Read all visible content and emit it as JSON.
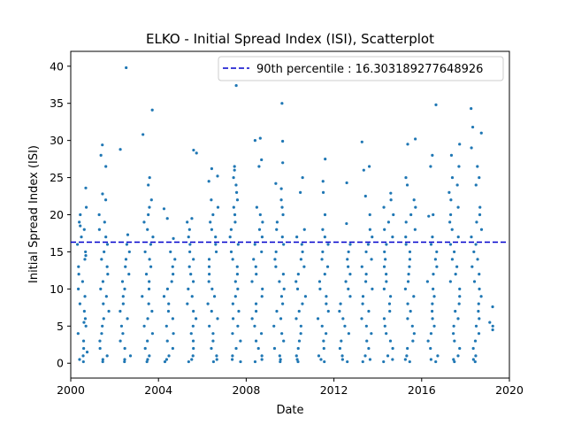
{
  "chart_data": {
    "type": "scatter",
    "title": "ELKO - Initial Spread Index (ISI), Scatterplot",
    "xlabel": "Date",
    "ylabel": "Initial Spread Index (ISI)",
    "xlim": [
      2000,
      2020
    ],
    "ylim": [
      -2,
      42
    ],
    "xticks": [
      2000,
      2004,
      2008,
      2012,
      2016,
      2020
    ],
    "yticks": [
      0,
      5,
      10,
      15,
      20,
      25,
      30,
      35,
      40
    ],
    "grid": false,
    "legend": {
      "placement": "top-right",
      "entries": [
        {
          "label": "90th percentile : 16.303189277648926",
          "style": "dashed",
          "color": "#0000cc"
        }
      ]
    },
    "reference_line": {
      "y": 16.303189277648926,
      "x_range": [
        2000,
        2019.9
      ],
      "color": "#0000cc"
    },
    "series_color": "#1f77b4",
    "seasons": [
      {
        "x": 2000.5,
        "y": [
          0.2,
          0.5,
          1.0,
          1.5,
          2.0,
          3.0,
          4.0,
          5.0,
          5.5,
          6.0,
          7.0,
          8.0,
          9.0,
          10.0,
          11.0,
          12.0,
          13.0,
          14.0,
          14.5,
          15.0,
          16.0,
          17.0,
          18.0,
          18.5,
          19.0,
          20.0,
          21.0,
          23.6
        ]
      },
      {
        "x": 2001.5,
        "y": [
          0.2,
          0.5,
          1.0,
          2.0,
          3.0,
          4.0,
          5.0,
          6.0,
          7.0,
          8.0,
          9.0,
          10.0,
          11.0,
          12.0,
          13.0,
          14.0,
          15.0,
          16.0,
          17.0,
          18.0,
          19.0,
          20.0,
          22.0,
          22.8,
          26.5,
          28.0,
          29.4
        ]
      },
      {
        "x": 2002.5,
        "y": [
          0.2,
          0.5,
          1.0,
          2.0,
          3.0,
          4.0,
          5.0,
          6.0,
          7.0,
          8.0,
          9.0,
          10.0,
          11.0,
          12.0,
          13.0,
          14.0,
          15.0,
          16.0,
          17.3,
          28.8,
          39.8
        ]
      },
      {
        "x": 2003.5,
        "y": [
          0.2,
          0.5,
          1.0,
          2.0,
          3.0,
          4.0,
          5.0,
          6.0,
          7.0,
          8.0,
          9.0,
          10.0,
          11.0,
          12.0,
          13.0,
          14.0,
          15.0,
          16.0,
          17.0,
          18.0,
          19.0,
          20.0,
          21.0,
          22.0,
          24.0,
          25.0,
          30.8,
          34.1
        ]
      },
      {
        "x": 2004.5,
        "y": [
          0.2,
          0.5,
          1.0,
          2.0,
          3.0,
          4.0,
          5.0,
          6.0,
          7.0,
          8.0,
          9.0,
          10.0,
          11.0,
          12.0,
          13.0,
          14.0,
          15.0,
          16.8,
          19.5,
          20.8
        ]
      },
      {
        "x": 2005.5,
        "y": [
          0.2,
          0.5,
          1.0,
          2.0,
          3.0,
          4.0,
          5.0,
          6.0,
          7.0,
          8.0,
          9.0,
          10.0,
          11.0,
          12.0,
          13.0,
          14.0,
          15.0,
          16.0,
          17.0,
          18.0,
          19.0,
          19.5,
          28.3,
          28.7
        ]
      },
      {
        "x": 2006.5,
        "y": [
          0.2,
          0.5,
          1.0,
          2.0,
          3.0,
          4.0,
          5.0,
          6.0,
          7.0,
          8.0,
          9.0,
          10.0,
          11.0,
          12.0,
          13.0,
          14.0,
          15.0,
          16.0,
          17.0,
          18.0,
          19.0,
          20.0,
          21.0,
          22.0,
          24.5,
          25.2,
          26.2
        ]
      },
      {
        "x": 2007.5,
        "y": [
          0.2,
          0.5,
          1.0,
          2.0,
          3.0,
          4.0,
          5.0,
          6.0,
          7.0,
          8.0,
          9.0,
          10.0,
          11.0,
          12.0,
          13.0,
          14.0,
          15.0,
          16.0,
          17.0,
          18.0,
          19.0,
          20.0,
          21.0,
          22.0,
          23.0,
          24.0,
          25.0,
          26.0,
          26.5,
          37.4
        ]
      },
      {
        "x": 2008.5,
        "y": [
          0.2,
          0.5,
          1.0,
          2.0,
          3.0,
          4.0,
          5.0,
          6.0,
          7.0,
          8.0,
          9.0,
          10.0,
          11.0,
          12.0,
          13.0,
          14.0,
          15.0,
          16.0,
          17.0,
          18.0,
          19.0,
          20.0,
          21.0,
          26.5,
          27.4,
          30.0,
          30.3
        ]
      },
      {
        "x": 2009.5,
        "y": [
          0.2,
          0.5,
          1.0,
          2.0,
          3.0,
          4.0,
          5.0,
          6.0,
          7.0,
          8.0,
          9.0,
          10.0,
          11.0,
          12.0,
          13.0,
          14.0,
          15.0,
          16.0,
          17.0,
          18.0,
          19.0,
          20.0,
          21.0,
          22.0,
          23.5,
          24.2,
          27.0,
          29.9,
          35.0
        ]
      },
      {
        "x": 2010.5,
        "y": [
          0.2,
          0.5,
          1.0,
          2.0,
          3.0,
          4.0,
          5.0,
          6.0,
          7.0,
          8.0,
          9.0,
          10.0,
          11.0,
          12.0,
          13.0,
          14.0,
          15.0,
          16.0,
          17.0,
          18.0,
          23.0,
          25.0
        ]
      },
      {
        "x": 2011.5,
        "y": [
          0.2,
          0.5,
          1.0,
          2.0,
          3.0,
          4.0,
          5.0,
          6.0,
          7.0,
          8.0,
          9.0,
          10.0,
          11.0,
          12.0,
          13.0,
          14.0,
          15.0,
          16.0,
          17.0,
          18.0,
          20.0,
          23.0,
          24.5,
          27.5
        ]
      },
      {
        "x": 2012.5,
        "y": [
          0.2,
          0.5,
          1.0,
          2.0,
          3.0,
          4.0,
          5.0,
          6.0,
          7.0,
          8.0,
          9.0,
          10.0,
          11.0,
          12.0,
          13.0,
          14.0,
          15.0,
          16.0,
          18.8,
          24.3
        ]
      },
      {
        "x": 2013.5,
        "y": [
          0.2,
          0.5,
          1.0,
          2.0,
          3.0,
          4.0,
          5.0,
          6.0,
          7.0,
          8.0,
          9.0,
          10.0,
          11.0,
          12.0,
          13.0,
          14.0,
          15.0,
          16.0,
          17.0,
          18.0,
          20.0,
          22.5,
          26.0,
          26.5,
          29.8
        ]
      },
      {
        "x": 2014.5,
        "y": [
          0.2,
          0.5,
          1.0,
          2.0,
          3.0,
          4.0,
          5.0,
          6.0,
          7.0,
          8.0,
          9.0,
          10.0,
          11.0,
          12.0,
          13.0,
          14.0,
          15.0,
          16.0,
          17.0,
          18.0,
          19.0,
          20.0,
          21.0,
          22.0,
          22.9
        ]
      },
      {
        "x": 2015.5,
        "y": [
          0.2,
          0.5,
          1.0,
          2.0,
          3.0,
          4.0,
          5.0,
          6.0,
          7.0,
          8.0,
          9.0,
          10.0,
          11.0,
          12.0,
          13.0,
          14.0,
          15.0,
          16.0,
          17.0,
          18.0,
          19.0,
          20.0,
          21.0,
          22.0,
          24.0,
          25.0,
          29.5,
          30.2
        ]
      },
      {
        "x": 2016.5,
        "y": [
          0.2,
          0.5,
          1.0,
          2.0,
          3.0,
          4.0,
          5.0,
          6.0,
          7.0,
          8.0,
          9.0,
          10.0,
          11.0,
          12.0,
          13.0,
          14.0,
          15.0,
          16.0,
          17.0,
          19.8,
          20.0,
          26.5,
          28.0,
          34.8
        ]
      },
      {
        "x": 2017.5,
        "y": [
          0.2,
          0.5,
          1.0,
          2.0,
          3.0,
          4.0,
          5.0,
          6.0,
          7.0,
          8.0,
          9.0,
          10.0,
          11.0,
          12.0,
          13.0,
          14.0,
          15.0,
          16.0,
          17.0,
          18.0,
          19.0,
          20.0,
          21.0,
          22.0,
          23.0,
          24.0,
          25.0,
          26.5,
          28.0,
          29.5
        ]
      },
      {
        "x": 2018.5,
        "y": [
          0.2,
          0.5,
          1.0,
          2.0,
          3.0,
          4.0,
          5.0,
          6.0,
          7.0,
          8.0,
          9.0,
          10.0,
          11.0,
          12.0,
          13.0,
          14.0,
          15.0,
          16.0,
          17.0,
          18.0,
          19.0,
          20.0,
          21.0,
          24.0,
          25.0,
          26.5,
          29.0,
          31.0,
          31.8,
          34.3
        ]
      },
      {
        "x": 2019.3,
        "y": [
          4.5,
          5.0,
          5.5,
          7.6
        ]
      }
    ]
  }
}
